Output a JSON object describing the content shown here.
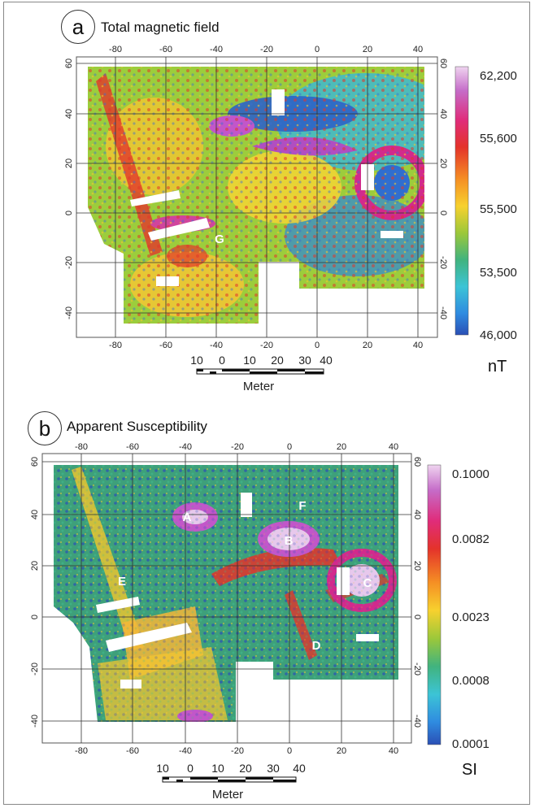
{
  "panels": [
    {
      "letter": "a",
      "title": "Total magnetic field",
      "x_ticks": [
        "-80",
        "-60",
        "-40",
        "-20",
        "0",
        "20",
        "40"
      ],
      "y_ticks_left": [
        "60",
        "40",
        "20",
        "0",
        "-20",
        "-40"
      ],
      "y_ticks_right": [
        "60",
        "40",
        "20",
        "0",
        "-20",
        "-40"
      ],
      "colorbar_labels": [
        "62,200",
        "55,600",
        "55,500",
        "53,500",
        "46,000"
      ],
      "colorbar_unit": "nT",
      "anomaly_labels": [
        "G"
      ],
      "scale_numbers": [
        "10",
        "0",
        "10",
        "20",
        "30",
        "40"
      ],
      "scale_unit": "Meter"
    },
    {
      "letter": "b",
      "title": "Apparent Susceptibility",
      "x_ticks": [
        "-80",
        "-60",
        "-40",
        "-20",
        "0",
        "20",
        "40"
      ],
      "y_ticks_left": [
        "60",
        "40",
        "20",
        "0",
        "-20",
        "-40"
      ],
      "y_ticks_right": [
        "60",
        "40",
        "20",
        "0",
        "-20",
        "-40"
      ],
      "colorbar_labels": [
        "0.1000",
        "0.0082",
        "0.0023",
        "0.0008",
        "0.0001"
      ],
      "colorbar_unit": "SI",
      "anomaly_labels": [
        "A",
        "B",
        "C",
        "D",
        "E",
        "F"
      ],
      "scale_numbers": [
        "10",
        "0",
        "10",
        "20",
        "30",
        "40"
      ],
      "scale_unit": "Meter"
    }
  ],
  "colors": {
    "colorbar_stops": [
      "#2a4fb5",
      "#2f86d8",
      "#39c0d8",
      "#40b88a",
      "#8ac63c",
      "#d8d82e",
      "#f5c33a",
      "#f28a25",
      "#e63626",
      "#d22a8c",
      "#b66ac8",
      "#e7c8ec"
    ]
  }
}
